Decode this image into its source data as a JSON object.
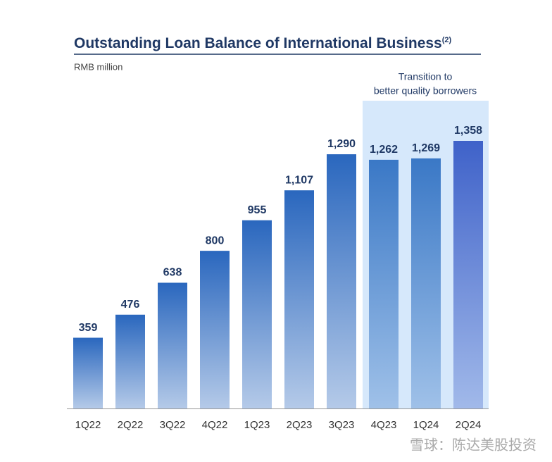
{
  "chart_data": {
    "type": "bar",
    "title": "Outstanding Loan Balance of International Business",
    "title_note": "(2)",
    "subtitle": "RMB million",
    "annotation": [
      "Transition to",
      "better quality borrowers"
    ],
    "categories": [
      "1Q22",
      "2Q22",
      "3Q22",
      "4Q22",
      "1Q23",
      "2Q23",
      "3Q23",
      "4Q23",
      "1Q24",
      "2Q24"
    ],
    "values": [
      359,
      476,
      638,
      800,
      955,
      1107,
      1290,
      1262,
      1269,
      1358
    ],
    "value_labels": [
      "359",
      "476",
      "638",
      "800",
      "955",
      "1,107",
      "1,290",
      "1,262",
      "1,269",
      "1,358"
    ],
    "colors": [
      "#2a67be",
      "#2a67be",
      "#2a67be",
      "#2a67be",
      "#2a67be",
      "#2a67be",
      "#2a67be",
      "#3a78c6",
      "#3a78c6",
      "#3f62c9"
    ],
    "watermark": "雪球：陈达美股投资"
  }
}
